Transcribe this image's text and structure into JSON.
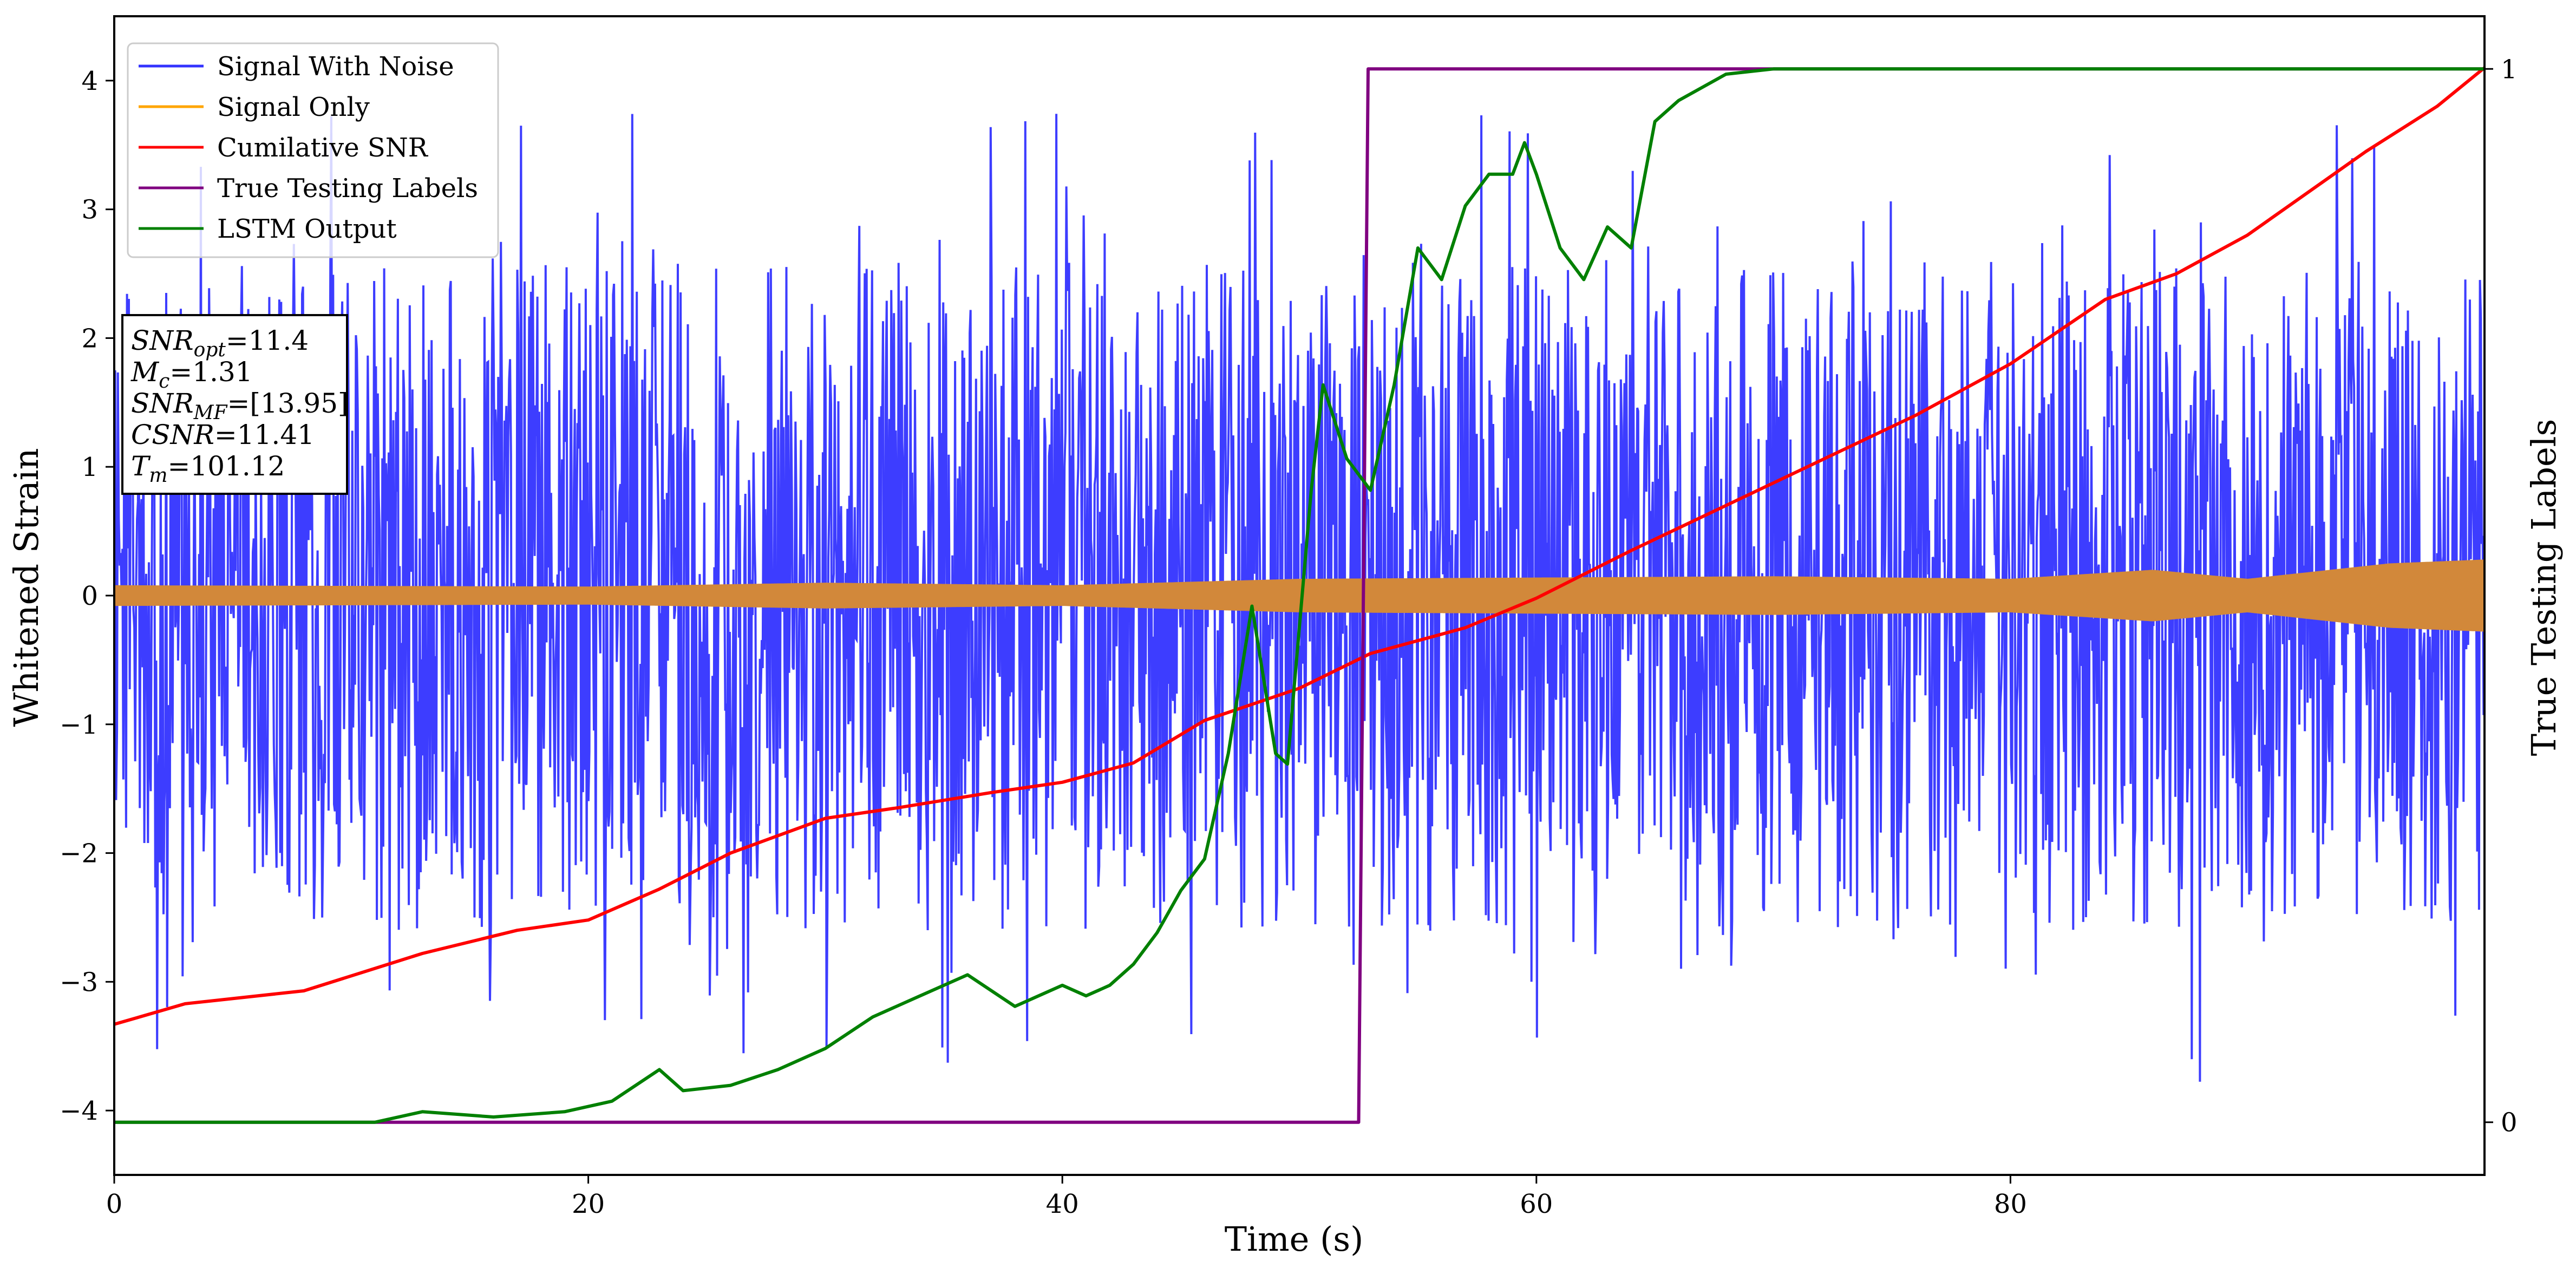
{
  "chart_data": {
    "type": "line",
    "xlabel": "Time (s)",
    "ylabel": "Whitened Strain",
    "ylabel_right": "True Testing Labels",
    "xlim": [
      0,
      100
    ],
    "ylim": [
      -4.5,
      4.5
    ],
    "ylim_right": [
      -0.05,
      1.05
    ],
    "x_ticks": [
      0,
      20,
      40,
      60,
      80
    ],
    "y_ticks": [
      -4,
      -3,
      -2,
      -1,
      0,
      1,
      2,
      3,
      4
    ],
    "y_ticks_right": [
      0,
      1
    ],
    "grid": false,
    "legend_position": "top-left",
    "legend": [
      {
        "name": "Signal With Noise",
        "color": "#3333ff"
      },
      {
        "name": "Signal Only",
        "color": "#ffa500"
      },
      {
        "name": "Cumilative SNR",
        "color": "#ff0000"
      },
      {
        "name": "True Testing Labels",
        "color": "#800080"
      },
      {
        "name": "LSTM Output",
        "color": "#008000"
      }
    ],
    "info_box": [
      {
        "sym": "SNR",
        "sub": "opt",
        "val": "=11.4"
      },
      {
        "sym": "M",
        "sub": "c",
        "val": "=1.31"
      },
      {
        "sym": "SNR",
        "sub": "MF",
        "val": "=[13.95]"
      },
      {
        "sym": "CSNR",
        "sub": "",
        "val": "=11.41"
      },
      {
        "sym": "T",
        "sub": "m",
        "val": "=101.12"
      }
    ],
    "series": [
      {
        "name": "Signal With Noise",
        "axis": "left",
        "color": "#3333ff",
        "noise_envelope": {
          "typical_abs": 2.0,
          "max": 4.1,
          "min": -3.95
        }
      },
      {
        "name": "Signal Only",
        "axis": "left",
        "color": "#d2883a",
        "amplitude": {
          "x": [
            0,
            20,
            30,
            40,
            50,
            60,
            70,
            80,
            86,
            90,
            96,
            100
          ],
          "value": [
            0.08,
            0.07,
            0.1,
            0.08,
            0.13,
            0.14,
            0.15,
            0.13,
            0.2,
            0.13,
            0.25,
            0.28
          ]
        }
      },
      {
        "name": "Cumilative SNR",
        "axis": "left",
        "color": "#ff0000",
        "x": [
          0,
          3,
          8,
          13,
          17,
          20,
          23,
          26,
          30,
          33,
          37,
          40,
          43,
          46,
          50,
          53,
          57,
          60,
          64,
          68,
          72,
          76,
          80,
          84,
          87,
          90,
          95,
          98,
          100
        ],
        "y": [
          -3.33,
          -3.17,
          -3.07,
          -2.78,
          -2.6,
          -2.52,
          -2.28,
          -2.0,
          -1.73,
          -1.65,
          -1.53,
          -1.45,
          -1.3,
          -0.97,
          -0.72,
          -0.45,
          -0.25,
          -0.02,
          0.35,
          0.7,
          1.05,
          1.4,
          1.8,
          2.3,
          2.5,
          2.8,
          3.45,
          3.8,
          4.1
        ]
      },
      {
        "name": "True Testing Labels",
        "axis": "right",
        "color": "#800080",
        "x": [
          0,
          52.5,
          52.9,
          100
        ],
        "y": [
          0,
          0,
          1,
          1
        ]
      },
      {
        "name": "LSTM Output",
        "axis": "right",
        "color": "#008000",
        "x": [
          0,
          11,
          13,
          16,
          19,
          21,
          23,
          24,
          26,
          28,
          30,
          32,
          34,
          36,
          38,
          40,
          41,
          42,
          43,
          44,
          45,
          46,
          47,
          48,
          49,
          49.5,
          50,
          50.5,
          51,
          52,
          53,
          54,
          55,
          56,
          57,
          58,
          59,
          59.5,
          60,
          61,
          62,
          63,
          64,
          65,
          66,
          68,
          70,
          75,
          80,
          90,
          100
        ],
        "y": [
          0,
          0,
          0.01,
          0.005,
          0.01,
          0.02,
          0.05,
          0.03,
          0.035,
          0.05,
          0.07,
          0.1,
          0.12,
          0.14,
          0.11,
          0.13,
          0.12,
          0.13,
          0.15,
          0.18,
          0.22,
          0.25,
          0.35,
          0.49,
          0.35,
          0.34,
          0.47,
          0.6,
          0.7,
          0.63,
          0.6,
          0.7,
          0.83,
          0.8,
          0.87,
          0.9,
          0.9,
          0.93,
          0.9,
          0.83,
          0.8,
          0.85,
          0.83,
          0.95,
          0.97,
          0.995,
          1.0,
          1.0,
          1.0,
          1.0,
          1.0
        ]
      }
    ]
  }
}
